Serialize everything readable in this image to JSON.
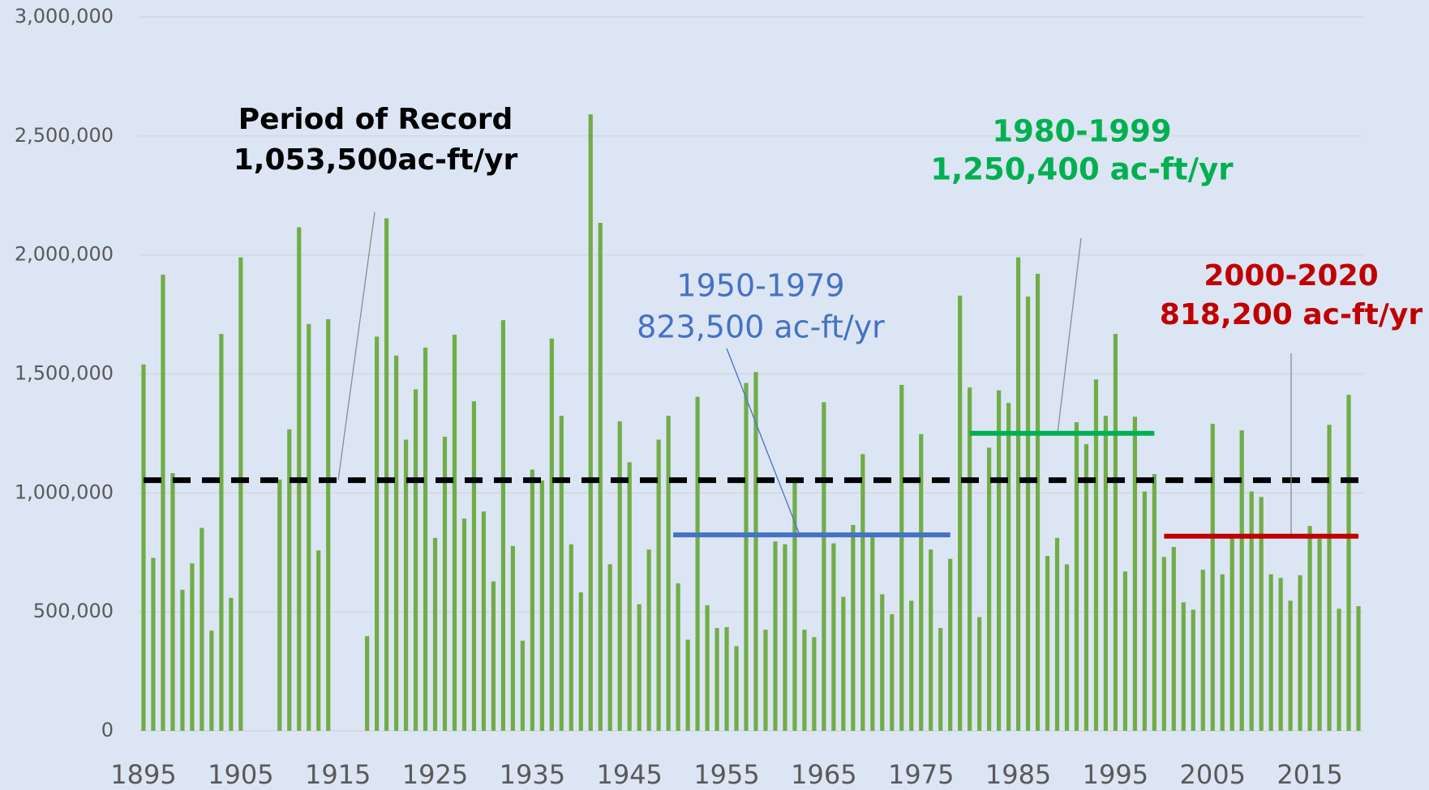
{
  "chart_data": {
    "type": "bar",
    "x": [
      1895,
      1896,
      1897,
      1898,
      1899,
      1900,
      1901,
      1902,
      1903,
      1904,
      1905,
      1906,
      1907,
      1908,
      1909,
      1910,
      1911,
      1912,
      1913,
      1914,
      1915,
      1916,
      1917,
      1918,
      1919,
      1920,
      1921,
      1922,
      1923,
      1924,
      1925,
      1926,
      1927,
      1928,
      1929,
      1930,
      1931,
      1932,
      1933,
      1934,
      1935,
      1936,
      1937,
      1938,
      1939,
      1940,
      1941,
      1942,
      1943,
      1944,
      1945,
      1946,
      1947,
      1948,
      1949,
      1950,
      1951,
      1952,
      1953,
      1954,
      1955,
      1956,
      1957,
      1958,
      1959,
      1960,
      1961,
      1962,
      1963,
      1964,
      1965,
      1966,
      1967,
      1968,
      1969,
      1970,
      1971,
      1972,
      1973,
      1974,
      1975,
      1976,
      1977,
      1978,
      1979,
      1980,
      1981,
      1982,
      1983,
      1984,
      1985,
      1986,
      1987,
      1988,
      1989,
      1990,
      1991,
      1992,
      1993,
      1994,
      1995,
      1996,
      1997,
      1998,
      1999,
      2000,
      2001,
      2002,
      2003,
      2004,
      2005,
      2006,
      2007,
      2008,
      2009,
      2010,
      2011,
      2012,
      2013,
      2014,
      2015,
      2016,
      2017,
      2018,
      2019,
      2020
    ],
    "values": [
      1540000,
      727000,
      1917000,
      1083000,
      593000,
      704000,
      853000,
      421000,
      1668000,
      559000,
      1990000,
      null,
      null,
      null,
      1056000,
      1267000,
      2116000,
      1710000,
      758000,
      1730000,
      null,
      null,
      null,
      398000,
      1657000,
      2154000,
      1577000,
      1224000,
      1435000,
      1611000,
      811000,
      1236000,
      1665000,
      892000,
      1385000,
      922000,
      628000,
      1726000,
      777000,
      379000,
      1098000,
      1052000,
      1649000,
      1324000,
      784000,
      582000,
      2591000,
      2135000,
      700000,
      1301000,
      1129000,
      532000,
      762000,
      1224000,
      1324000,
      620000,
      383000,
      1404000,
      528000,
      432000,
      436000,
      356000,
      1462000,
      1508000,
      425000,
      796000,
      784000,
      1045000,
      425000,
      394000,
      1381000,
      788000,
      563000,
      865000,
      1163000,
      823000,
      574000,
      490000,
      1454000,
      547000,
      1247000,
      762000,
      432000,
      723000,
      1829000,
      1443000,
      478000,
      1190000,
      1431000,
      1378000,
      1990000,
      1825000,
      1921000,
      735000,
      811000,
      700000,
      1297000,
      1205000,
      1477000,
      1324000,
      1668000,
      670000,
      1320000,
      1006000,
      1079000,
      731000,
      773000,
      540000,
      509000,
      677000,
      1290000,
      658000,
      815000,
      1263000,
      1006000,
      983000,
      658000,
      643000,
      547000,
      654000,
      861000,
      807000,
      1286000,
      513000,
      1412000,
      524000
    ],
    "color": "#70ad47",
    "xlim": [
      1894.5,
      2020.5
    ],
    "xticks": [
      1895,
      1905,
      1915,
      1925,
      1935,
      1945,
      1955,
      1965,
      1975,
      1985,
      1995,
      2005,
      2015
    ],
    "ylim": [
      0,
      3000000
    ],
    "yticks": [
      0,
      {
        "value": 500000,
        "label": "500,000"
      },
      {
        "value": 1000000,
        "label": "1,000,000"
      },
      {
        "value": 1500000,
        "label": "1,500,000"
      },
      {
        "value": 2000000,
        "label": "2,000,000"
      },
      {
        "value": 2500000,
        "label": "2,500,000"
      },
      {
        "value": 3000000,
        "label": "3,000,000"
      }
    ],
    "grid": true,
    "reference_lines": [
      {
        "label": "Period of Record",
        "value_label": "1,053,500ac-ft/yr",
        "value": 1053500,
        "start": 1895,
        "end": 2020,
        "color": "#000000",
        "dashed": true
      },
      {
        "label": "1950-1979",
        "value_label": "823,500 ac-ft/yr",
        "value": 823500,
        "start": 1949.5,
        "end": 1978,
        "color": "#4472c4"
      },
      {
        "label": "1980-1999",
        "value_label": "1,250,400 ac-ft/yr",
        "value": 1250400,
        "start": 1980,
        "end": 1999,
        "color": "#00b050"
      },
      {
        "label": "2000-2020",
        "value_label": "818,200 ac-ft/yr",
        "value": 818200,
        "start": 2000,
        "end": 2020,
        "color": "#c00000"
      }
    ]
  }
}
